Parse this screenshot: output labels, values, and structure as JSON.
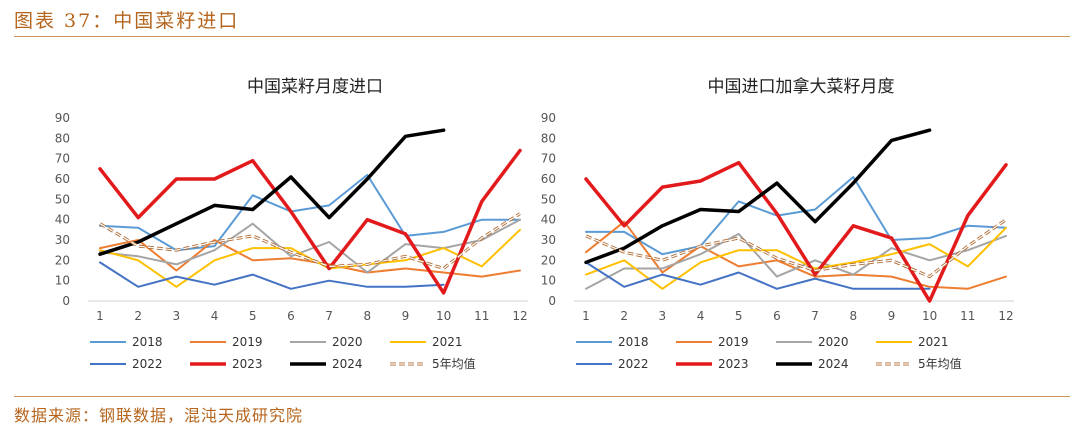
{
  "figure": {
    "title": "图表 37：中国菜籽进口",
    "source": "数据来源：钢联数据，混沌天成研究院"
  },
  "chart_data": [
    {
      "type": "line",
      "title": "中国菜籽月度进口",
      "categories": [
        "1",
        "2",
        "3",
        "4",
        "5",
        "6",
        "7",
        "8",
        "9",
        "10",
        "11",
        "12"
      ],
      "ylim": [
        0,
        90
      ],
      "yticks": [
        0,
        10,
        20,
        30,
        40,
        50,
        60,
        70,
        80,
        90
      ],
      "grid": false,
      "legend": "bottom",
      "series": [
        {
          "name": "2018",
          "color": "#5b9bd5",
          "width": 2,
          "values": [
            37,
            36,
            25,
            27,
            52,
            44,
            47,
            62,
            32,
            34,
            40,
            40
          ]
        },
        {
          "name": "2019",
          "color": "#ed7d31",
          "width": 2,
          "values": [
            26,
            30,
            15,
            30,
            20,
            21,
            18,
            14,
            16,
            14,
            12,
            15
          ]
        },
        {
          "name": "2020",
          "color": "#a5a5a5",
          "width": 2,
          "values": [
            24,
            22,
            18,
            25,
            38,
            22,
            29,
            14,
            28,
            26,
            30,
            40
          ]
        },
        {
          "name": "2021",
          "color": "#ffc000",
          "width": 2,
          "values": [
            25,
            20,
            7,
            20,
            26,
            26,
            16,
            18,
            20,
            26,
            17,
            35
          ]
        },
        {
          "name": "2022",
          "color": "#4472c4",
          "width": 2,
          "values": [
            19,
            7,
            12,
            8,
            13,
            6,
            10,
            7,
            7,
            8,
            null,
            null
          ]
        },
        {
          "name": "2023",
          "color": "#e31a1c",
          "width": 3.5,
          "values": [
            65,
            41,
            60,
            60,
            69,
            44,
            16,
            40,
            33,
            4,
            49,
            74
          ]
        },
        {
          "name": "2024",
          "color": "#000000",
          "width": 3.5,
          "values": [
            23,
            29,
            38,
            47,
            45,
            61,
            41,
            60,
            81,
            84,
            null,
            null
          ]
        },
        {
          "name": "5年均值",
          "color": "#b06b33",
          "width": 3,
          "dashed": true,
          "values": [
            38,
            27,
            25,
            29,
            32,
            24,
            17,
            18,
            22,
            16,
            31,
            43
          ]
        }
      ]
    },
    {
      "type": "line",
      "title": "中国进口加拿大菜籽月度",
      "categories": [
        "1",
        "2",
        "3",
        "4",
        "5",
        "6",
        "7",
        "8",
        "9",
        "10",
        "11",
        "12"
      ],
      "ylim": [
        0,
        90
      ],
      "yticks": [
        0,
        10,
        20,
        30,
        40,
        50,
        60,
        70,
        80,
        90
      ],
      "grid": false,
      "legend": "bottom",
      "series": [
        {
          "name": "2018",
          "color": "#5b9bd5",
          "width": 2,
          "values": [
            34,
            34,
            23,
            27,
            49,
            42,
            45,
            61,
            30,
            31,
            37,
            36
          ]
        },
        {
          "name": "2019",
          "color": "#ed7d31",
          "width": 2,
          "values": [
            24,
            39,
            14,
            27,
            17,
            20,
            12,
            13,
            12,
            7,
            6,
            12
          ]
        },
        {
          "name": "2020",
          "color": "#a5a5a5",
          "width": 2,
          "values": [
            6,
            16,
            16,
            23,
            33,
            12,
            20,
            13,
            26,
            20,
            25,
            32
          ]
        },
        {
          "name": "2021",
          "color": "#ffc000",
          "width": 2,
          "values": [
            13,
            20,
            6,
            19,
            25,
            25,
            16,
            19,
            23,
            28,
            17,
            36
          ]
        },
        {
          "name": "2022",
          "color": "#4472c4",
          "width": 2,
          "values": [
            19,
            7,
            13,
            8,
            14,
            6,
            11,
            6,
            6,
            6,
            null,
            null
          ]
        },
        {
          "name": "2023",
          "color": "#e31a1c",
          "width": 3.5,
          "values": [
            60,
            37,
            56,
            59,
            68,
            43,
            13,
            37,
            31,
            0,
            42,
            67
          ]
        },
        {
          "name": "2024",
          "color": "#000000",
          "width": 3.5,
          "values": [
            19,
            26,
            37,
            45,
            44,
            58,
            39,
            58,
            79,
            84,
            null,
            null
          ]
        },
        {
          "name": "5年均值",
          "color": "#b06b33",
          "width": 3,
          "dashed": true,
          "values": [
            32,
            24,
            20,
            27,
            31,
            21,
            15,
            18,
            20,
            12,
            27,
            40
          ]
        }
      ]
    }
  ]
}
